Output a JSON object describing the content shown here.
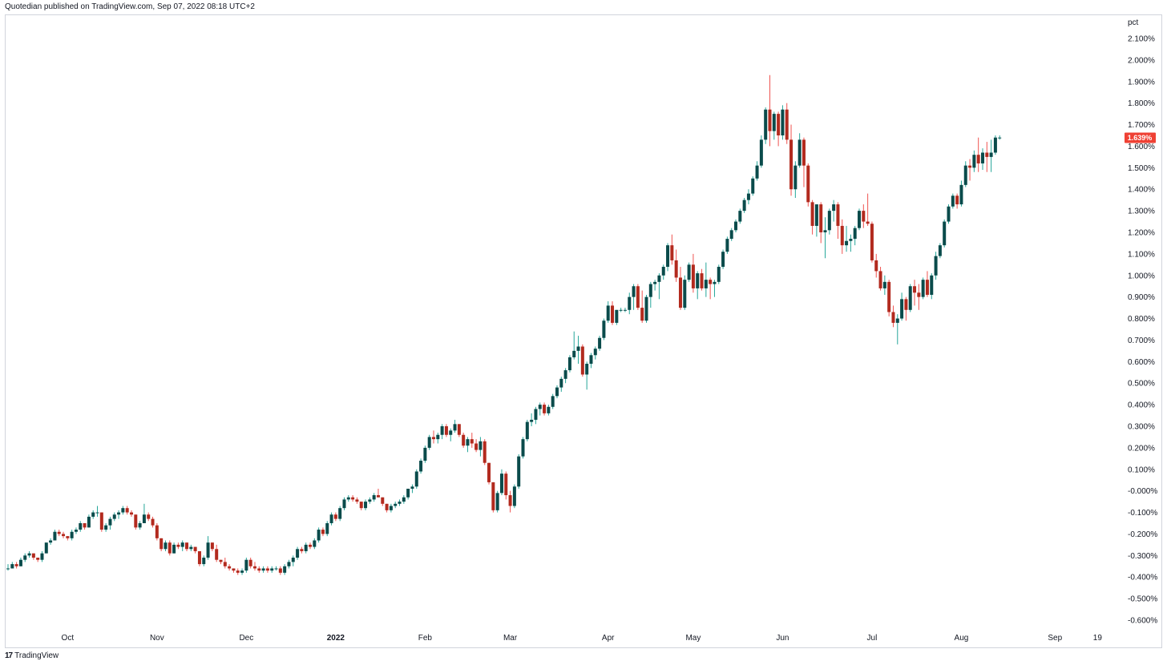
{
  "header": {
    "published_text": "Quotedian published on TradingView.com, Sep 07, 2022 08:18 UTC+2"
  },
  "footer": {
    "brand": "TradingView",
    "logo_glyph": "17"
  },
  "colors": {
    "up": "#26a69a",
    "down": "#ef5350",
    "body_up": "#0a4b4b",
    "body_down": "#b22a1e",
    "last_label_bg": "#ef4134"
  },
  "chart_data": {
    "type": "candlestick",
    "title": "",
    "xlabel": "",
    "ylabel": "pct",
    "ylim": [
      -0.6,
      2.1
    ],
    "y_ticks": [
      "2.100%",
      "2.000%",
      "1.900%",
      "1.800%",
      "1.700%",
      "1.600%",
      "1.500%",
      "1.400%",
      "1.300%",
      "1.200%",
      "1.100%",
      "1.000%",
      "0.900%",
      "0.800%",
      "0.700%",
      "0.600%",
      "0.500%",
      "0.400%",
      "0.300%",
      "0.200%",
      "0.100%",
      "-0.000%",
      "-0.100%",
      "-0.200%",
      "-0.300%",
      "-0.400%",
      "-0.500%",
      "-0.600%"
    ],
    "x_ticks": [
      {
        "label": "Oct",
        "index": 14,
        "bold": false
      },
      {
        "label": "Nov",
        "index": 35,
        "bold": false
      },
      {
        "label": "Dec",
        "index": 56,
        "bold": false
      },
      {
        "label": "2022",
        "index": 77,
        "bold": true
      },
      {
        "label": "Feb",
        "index": 98,
        "bold": false
      },
      {
        "label": "Mar",
        "index": 118,
        "bold": false
      },
      {
        "label": "Apr",
        "index": 141,
        "bold": false
      },
      {
        "label": "May",
        "index": 161,
        "bold": false
      },
      {
        "label": "Jun",
        "index": 182,
        "bold": false
      },
      {
        "label": "Jul",
        "index": 203,
        "bold": false
      },
      {
        "label": "Aug",
        "index": 224,
        "bold": false
      },
      {
        "label": "Sep",
        "index": 246,
        "bold": false
      },
      {
        "label": "19",
        "index": 256,
        "bold": false
      }
    ],
    "last_value_label": "1.639%",
    "last_value": 1.639,
    "candles": [
      [
        -0.36,
        -0.34,
        -0.37,
        -0.36
      ],
      [
        -0.36,
        -0.33,
        -0.36,
        -0.34
      ],
      [
        -0.34,
        -0.33,
        -0.36,
        -0.35
      ],
      [
        -0.35,
        -0.31,
        -0.35,
        -0.32
      ],
      [
        -0.32,
        -0.29,
        -0.33,
        -0.3
      ],
      [
        -0.3,
        -0.28,
        -0.31,
        -0.29
      ],
      [
        -0.29,
        -0.29,
        -0.32,
        -0.31
      ],
      [
        -0.31,
        -0.31,
        -0.33,
        -0.32
      ],
      [
        -0.32,
        -0.28,
        -0.33,
        -0.29
      ],
      [
        -0.29,
        -0.24,
        -0.29,
        -0.24
      ],
      [
        -0.24,
        -0.22,
        -0.25,
        -0.23
      ],
      [
        -0.23,
        -0.18,
        -0.23,
        -0.19
      ],
      [
        -0.19,
        -0.18,
        -0.21,
        -0.2
      ],
      [
        -0.2,
        -0.19,
        -0.22,
        -0.21
      ],
      [
        -0.21,
        -0.21,
        -0.23,
        -0.22
      ],
      [
        -0.22,
        -0.18,
        -0.23,
        -0.19
      ],
      [
        -0.19,
        -0.17,
        -0.2,
        -0.18
      ],
      [
        -0.18,
        -0.14,
        -0.19,
        -0.15
      ],
      [
        -0.15,
        -0.15,
        -0.18,
        -0.17
      ],
      [
        -0.17,
        -0.11,
        -0.17,
        -0.12
      ],
      [
        -0.12,
        -0.09,
        -0.13,
        -0.1
      ],
      [
        -0.1,
        -0.07,
        -0.12,
        -0.1
      ],
      [
        -0.1,
        -0.1,
        -0.19,
        -0.18
      ],
      [
        -0.18,
        -0.15,
        -0.19,
        -0.16
      ],
      [
        -0.16,
        -0.12,
        -0.18,
        -0.13
      ],
      [
        -0.13,
        -0.1,
        -0.14,
        -0.11
      ],
      [
        -0.11,
        -0.09,
        -0.13,
        -0.1
      ],
      [
        -0.1,
        -0.07,
        -0.11,
        -0.08
      ],
      [
        -0.08,
        -0.07,
        -0.11,
        -0.1
      ],
      [
        -0.1,
        -0.09,
        -0.12,
        -0.11
      ],
      [
        -0.11,
        -0.11,
        -0.18,
        -0.17
      ],
      [
        -0.17,
        -0.14,
        -0.18,
        -0.15
      ],
      [
        -0.15,
        -0.06,
        -0.15,
        -0.11
      ],
      [
        -0.11,
        -0.1,
        -0.14,
        -0.13
      ],
      [
        -0.13,
        -0.12,
        -0.17,
        -0.16
      ],
      [
        -0.16,
        -0.15,
        -0.23,
        -0.22
      ],
      [
        -0.22,
        -0.22,
        -0.28,
        -0.27
      ],
      [
        -0.27,
        -0.23,
        -0.28,
        -0.24
      ],
      [
        -0.24,
        -0.23,
        -0.3,
        -0.29
      ],
      [
        -0.29,
        -0.24,
        -0.29,
        -0.25
      ],
      [
        -0.25,
        -0.24,
        -0.27,
        -0.26
      ],
      [
        -0.26,
        -0.23,
        -0.28,
        -0.24
      ],
      [
        -0.24,
        -0.24,
        -0.28,
        -0.27
      ],
      [
        -0.27,
        -0.25,
        -0.28,
        -0.26
      ],
      [
        -0.26,
        -0.26,
        -0.29,
        -0.28
      ],
      [
        -0.28,
        -0.28,
        -0.35,
        -0.34
      ],
      [
        -0.34,
        -0.3,
        -0.35,
        -0.31
      ],
      [
        -0.31,
        -0.21,
        -0.32,
        -0.24
      ],
      [
        -0.24,
        -0.24,
        -0.28,
        -0.27
      ],
      [
        -0.27,
        -0.25,
        -0.33,
        -0.32
      ],
      [
        -0.32,
        -0.32,
        -0.34,
        -0.33
      ],
      [
        -0.33,
        -0.31,
        -0.36,
        -0.35
      ],
      [
        -0.35,
        -0.34,
        -0.37,
        -0.36
      ],
      [
        -0.36,
        -0.36,
        -0.38,
        -0.37
      ],
      [
        -0.37,
        -0.36,
        -0.39,
        -0.38
      ],
      [
        -0.38,
        -0.36,
        -0.39,
        -0.37
      ],
      [
        -0.37,
        -0.31,
        -0.38,
        -0.32
      ],
      [
        -0.32,
        -0.31,
        -0.36,
        -0.35
      ],
      [
        -0.35,
        -0.33,
        -0.37,
        -0.36
      ],
      [
        -0.36,
        -0.35,
        -0.38,
        -0.37
      ],
      [
        -0.37,
        -0.35,
        -0.38,
        -0.36
      ],
      [
        -0.36,
        -0.35,
        -0.38,
        -0.37
      ],
      [
        -0.37,
        -0.35,
        -0.38,
        -0.36
      ],
      [
        -0.36,
        -0.35,
        -0.37,
        -0.36
      ],
      [
        -0.36,
        -0.35,
        -0.39,
        -0.38
      ],
      [
        -0.38,
        -0.34,
        -0.39,
        -0.35
      ],
      [
        -0.35,
        -0.32,
        -0.36,
        -0.33
      ],
      [
        -0.33,
        -0.3,
        -0.35,
        -0.31
      ],
      [
        -0.31,
        -0.26,
        -0.32,
        -0.27
      ],
      [
        -0.27,
        -0.26,
        -0.29,
        -0.28
      ],
      [
        -0.28,
        -0.24,
        -0.29,
        -0.25
      ],
      [
        -0.25,
        -0.24,
        -0.27,
        -0.26
      ],
      [
        -0.26,
        -0.22,
        -0.27,
        -0.23
      ],
      [
        -0.23,
        -0.17,
        -0.24,
        -0.18
      ],
      [
        -0.18,
        -0.17,
        -0.21,
        -0.2
      ],
      [
        -0.2,
        -0.14,
        -0.21,
        -0.15
      ],
      [
        -0.15,
        -0.1,
        -0.16,
        -0.11
      ],
      [
        -0.11,
        -0.1,
        -0.14,
        -0.13
      ],
      [
        -0.13,
        -0.07,
        -0.14,
        -0.08
      ],
      [
        -0.08,
        -0.03,
        -0.09,
        -0.04
      ],
      [
        -0.04,
        -0.02,
        -0.05,
        -0.03
      ],
      [
        -0.03,
        -0.02,
        -0.05,
        -0.04
      ],
      [
        -0.04,
        -0.03,
        -0.06,
        -0.05
      ],
      [
        -0.05,
        -0.05,
        -0.09,
        -0.08
      ],
      [
        -0.08,
        -0.04,
        -0.09,
        -0.05
      ],
      [
        -0.05,
        -0.03,
        -0.06,
        -0.04
      ],
      [
        -0.04,
        -0.01,
        -0.05,
        -0.02
      ],
      [
        -0.02,
        0.01,
        -0.03,
        -0.03
      ],
      [
        -0.03,
        -0.03,
        -0.07,
        -0.06
      ],
      [
        -0.06,
        -0.06,
        -0.1,
        -0.09
      ],
      [
        -0.09,
        -0.06,
        -0.1,
        -0.07
      ],
      [
        -0.07,
        -0.05,
        -0.08,
        -0.06
      ],
      [
        -0.06,
        -0.04,
        -0.07,
        -0.05
      ],
      [
        -0.05,
        -0.02,
        -0.06,
        -0.03
      ],
      [
        -0.03,
        0.0,
        -0.04,
        0.01
      ],
      [
        0.01,
        0.03,
        -0.01,
        0.02
      ],
      [
        0.02,
        0.1,
        0.01,
        0.09
      ],
      [
        0.09,
        0.15,
        0.08,
        0.14
      ],
      [
        0.14,
        0.21,
        0.13,
        0.2
      ],
      [
        0.2,
        0.26,
        0.19,
        0.25
      ],
      [
        0.25,
        0.28,
        0.22,
        0.24
      ],
      [
        0.24,
        0.27,
        0.22,
        0.26
      ],
      [
        0.26,
        0.31,
        0.24,
        0.3
      ],
      [
        0.3,
        0.31,
        0.25,
        0.26
      ],
      [
        0.26,
        0.29,
        0.23,
        0.28
      ],
      [
        0.28,
        0.33,
        0.27,
        0.31
      ],
      [
        0.31,
        0.31,
        0.25,
        0.26
      ],
      [
        0.26,
        0.27,
        0.2,
        0.21
      ],
      [
        0.21,
        0.25,
        0.18,
        0.24
      ],
      [
        0.24,
        0.27,
        0.2,
        0.22
      ],
      [
        0.22,
        0.24,
        0.18,
        0.19
      ],
      [
        0.19,
        0.25,
        0.16,
        0.23
      ],
      [
        0.23,
        0.24,
        0.12,
        0.13
      ],
      [
        0.13,
        0.13,
        0.03,
        0.04
      ],
      [
        0.04,
        0.04,
        -0.1,
        -0.09
      ],
      [
        -0.09,
        0.0,
        -0.1,
        -0.01
      ],
      [
        -0.01,
        0.1,
        -0.02,
        0.08
      ],
      [
        0.08,
        0.09,
        -0.04,
        -0.02
      ],
      [
        -0.02,
        0.0,
        -0.1,
        -0.07
      ],
      [
        -0.07,
        0.03,
        -0.08,
        0.02
      ],
      [
        0.02,
        0.17,
        0.01,
        0.16
      ],
      [
        0.16,
        0.25,
        0.15,
        0.24
      ],
      [
        0.24,
        0.33,
        0.23,
        0.32
      ],
      [
        0.32,
        0.36,
        0.3,
        0.33
      ],
      [
        0.33,
        0.39,
        0.31,
        0.38
      ],
      [
        0.38,
        0.41,
        0.35,
        0.4
      ],
      [
        0.4,
        0.41,
        0.35,
        0.36
      ],
      [
        0.36,
        0.4,
        0.35,
        0.39
      ],
      [
        0.39,
        0.45,
        0.38,
        0.44
      ],
      [
        0.44,
        0.49,
        0.43,
        0.48
      ],
      [
        0.48,
        0.53,
        0.46,
        0.52
      ],
      [
        0.52,
        0.57,
        0.5,
        0.56
      ],
      [
        0.56,
        0.63,
        0.55,
        0.62
      ],
      [
        0.62,
        0.74,
        0.61,
        0.65
      ],
      [
        0.65,
        0.72,
        0.59,
        0.67
      ],
      [
        0.67,
        0.68,
        0.53,
        0.54
      ],
      [
        0.54,
        0.6,
        0.47,
        0.59
      ],
      [
        0.59,
        0.64,
        0.57,
        0.63
      ],
      [
        0.63,
        0.67,
        0.61,
        0.66
      ],
      [
        0.66,
        0.72,
        0.65,
        0.71
      ],
      [
        0.71,
        0.8,
        0.7,
        0.79
      ],
      [
        0.79,
        0.88,
        0.78,
        0.86
      ],
      [
        0.86,
        0.88,
        0.77,
        0.78
      ],
      [
        0.78,
        0.84,
        0.77,
        0.84
      ],
      [
        0.84,
        0.85,
        0.83,
        0.84
      ],
      [
        0.84,
        0.85,
        0.83,
        0.84
      ],
      [
        0.84,
        0.92,
        0.82,
        0.9
      ],
      [
        0.9,
        0.96,
        0.84,
        0.95
      ],
      [
        0.95,
        0.96,
        0.84,
        0.85
      ],
      [
        0.85,
        0.93,
        0.78,
        0.79
      ],
      [
        0.79,
        0.91,
        0.78,
        0.9
      ],
      [
        0.9,
        0.97,
        0.85,
        0.96
      ],
      [
        0.96,
        0.98,
        0.93,
        0.97
      ],
      [
        0.97,
        1.01,
        0.89,
        1.0
      ],
      [
        1.0,
        1.05,
        0.98,
        1.04
      ],
      [
        1.04,
        1.15,
        1.02,
        1.14
      ],
      [
        1.14,
        1.19,
        1.05,
        1.07
      ],
      [
        1.07,
        1.12,
        0.97,
        0.99
      ],
      [
        0.99,
        1.04,
        0.84,
        0.85
      ],
      [
        0.85,
        1.0,
        0.84,
        0.98
      ],
      [
        0.98,
        1.06,
        0.97,
        1.05
      ],
      [
        1.05,
        1.1,
        0.92,
        0.94
      ],
      [
        0.94,
        1.02,
        0.89,
        1.01
      ],
      [
        1.01,
        1.03,
        0.93,
        0.94
      ],
      [
        0.94,
        1.06,
        0.9,
        0.98
      ],
      [
        0.98,
        0.99,
        0.89,
        0.96
      ],
      [
        0.96,
        0.98,
        0.9,
        0.97
      ],
      [
        0.97,
        1.05,
        0.96,
        1.04
      ],
      [
        1.04,
        1.12,
        1.03,
        1.11
      ],
      [
        1.11,
        1.18,
        1.1,
        1.17
      ],
      [
        1.17,
        1.22,
        1.16,
        1.21
      ],
      [
        1.21,
        1.26,
        1.2,
        1.25
      ],
      [
        1.25,
        1.31,
        1.24,
        1.3
      ],
      [
        1.3,
        1.36,
        1.29,
        1.35
      ],
      [
        1.35,
        1.4,
        1.33,
        1.38
      ],
      [
        1.38,
        1.46,
        1.37,
        1.45
      ],
      [
        1.45,
        1.53,
        1.44,
        1.51
      ],
      [
        1.51,
        1.65,
        1.5,
        1.63
      ],
      [
        1.63,
        1.78,
        1.61,
        1.77
      ],
      [
        1.77,
        1.93,
        1.6,
        1.67
      ],
      [
        1.67,
        1.76,
        1.63,
        1.75
      ],
      [
        1.75,
        1.76,
        1.6,
        1.65
      ],
      [
        1.65,
        1.79,
        1.63,
        1.77
      ],
      [
        1.77,
        1.8,
        1.61,
        1.63
      ],
      [
        1.63,
        1.7,
        1.37,
        1.4
      ],
      [
        1.4,
        1.53,
        1.36,
        1.51
      ],
      [
        1.51,
        1.66,
        1.5,
        1.63
      ],
      [
        1.63,
        1.64,
        1.41,
        1.51
      ],
      [
        1.51,
        1.52,
        1.32,
        1.34
      ],
      [
        1.34,
        1.35,
        1.19,
        1.23
      ],
      [
        1.23,
        1.33,
        1.18,
        1.33
      ],
      [
        1.33,
        1.34,
        1.15,
        1.2
      ],
      [
        1.2,
        1.27,
        1.08,
        1.21
      ],
      [
        1.21,
        1.31,
        1.19,
        1.3
      ],
      [
        1.3,
        1.35,
        1.25,
        1.33
      ],
      [
        1.33,
        1.34,
        1.17,
        1.23
      ],
      [
        1.23,
        1.26,
        1.1,
        1.14
      ],
      [
        1.14,
        1.23,
        1.11,
        1.16
      ],
      [
        1.16,
        1.19,
        1.11,
        1.17
      ],
      [
        1.17,
        1.23,
        1.14,
        1.22
      ],
      [
        1.22,
        1.31,
        1.21,
        1.3
      ],
      [
        1.3,
        1.33,
        1.22,
        1.25
      ],
      [
        1.25,
        1.38,
        1.23,
        1.24
      ],
      [
        1.24,
        1.25,
        1.06,
        1.07
      ],
      [
        1.07,
        1.1,
        0.99,
        1.02
      ],
      [
        1.02,
        1.04,
        0.93,
        0.94
      ],
      [
        0.94,
        1.0,
        0.91,
        0.97
      ],
      [
        0.97,
        0.98,
        0.81,
        0.83
      ],
      [
        0.83,
        0.86,
        0.76,
        0.78
      ],
      [
        0.78,
        0.82,
        0.68,
        0.8
      ],
      [
        0.8,
        0.92,
        0.79,
        0.89
      ],
      [
        0.89,
        0.9,
        0.79,
        0.84
      ],
      [
        0.84,
        0.96,
        0.83,
        0.95
      ],
      [
        0.95,
        0.98,
        0.86,
        0.92
      ],
      [
        0.92,
        0.96,
        0.84,
        0.9
      ],
      [
        0.9,
        0.99,
        0.89,
        0.98
      ],
      [
        0.98,
        1.02,
        0.9,
        0.91
      ],
      [
        0.91,
        1.01,
        0.89,
        1.0
      ],
      [
        1.0,
        1.11,
        0.98,
        1.09
      ],
      [
        1.09,
        1.15,
        1.08,
        1.14
      ],
      [
        1.14,
        1.26,
        1.13,
        1.25
      ],
      [
        1.25,
        1.33,
        1.24,
        1.32
      ],
      [
        1.32,
        1.38,
        1.31,
        1.37
      ],
      [
        1.37,
        1.38,
        1.31,
        1.33
      ],
      [
        1.33,
        1.44,
        1.32,
        1.42
      ],
      [
        1.42,
        1.53,
        1.41,
        1.51
      ],
      [
        1.51,
        1.54,
        1.44,
        1.5
      ],
      [
        1.5,
        1.58,
        1.48,
        1.56
      ],
      [
        1.56,
        1.64,
        1.48,
        1.52
      ],
      [
        1.52,
        1.59,
        1.49,
        1.57
      ],
      [
        1.57,
        1.62,
        1.48,
        1.55
      ],
      [
        1.55,
        1.63,
        1.48,
        1.57
      ],
      [
        1.57,
        1.65,
        1.56,
        1.64
      ],
      [
        1.64,
        1.65,
        1.63,
        1.64
      ]
    ]
  }
}
